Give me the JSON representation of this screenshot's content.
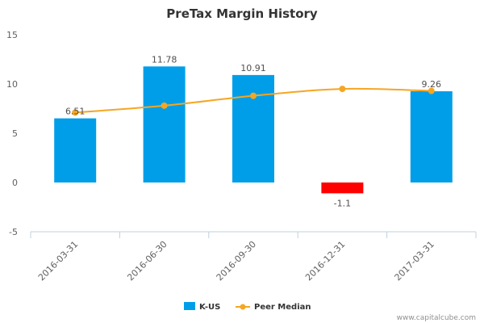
{
  "chart_data": {
    "type": "bar",
    "title": "PreTax Margin History",
    "categories": [
      "2016-03-31",
      "2016-06-30",
      "2016-09-30",
      "2016-12-31",
      "2017-03-31"
    ],
    "series": [
      {
        "name": "K-US",
        "type": "bar",
        "values": [
          6.51,
          11.78,
          10.91,
          -1.1,
          9.26
        ],
        "labels": [
          "6.51",
          "11.78",
          "10.91",
          "-1.1",
          "9.26"
        ]
      },
      {
        "name": "Peer Median",
        "type": "line",
        "values": [
          7.1,
          7.8,
          8.8,
          9.5,
          9.3
        ]
      }
    ],
    "ylim": [
      -5,
      15
    ],
    "yticks": [
      -5,
      0,
      5,
      10,
      15
    ],
    "grid": false,
    "legend": "bottom-center"
  },
  "colors": {
    "bar_positive": "#009ee9",
    "bar_negative": "#ff0000",
    "peer_line": "#f5a623"
  },
  "credit": "www.capitalcube.com"
}
